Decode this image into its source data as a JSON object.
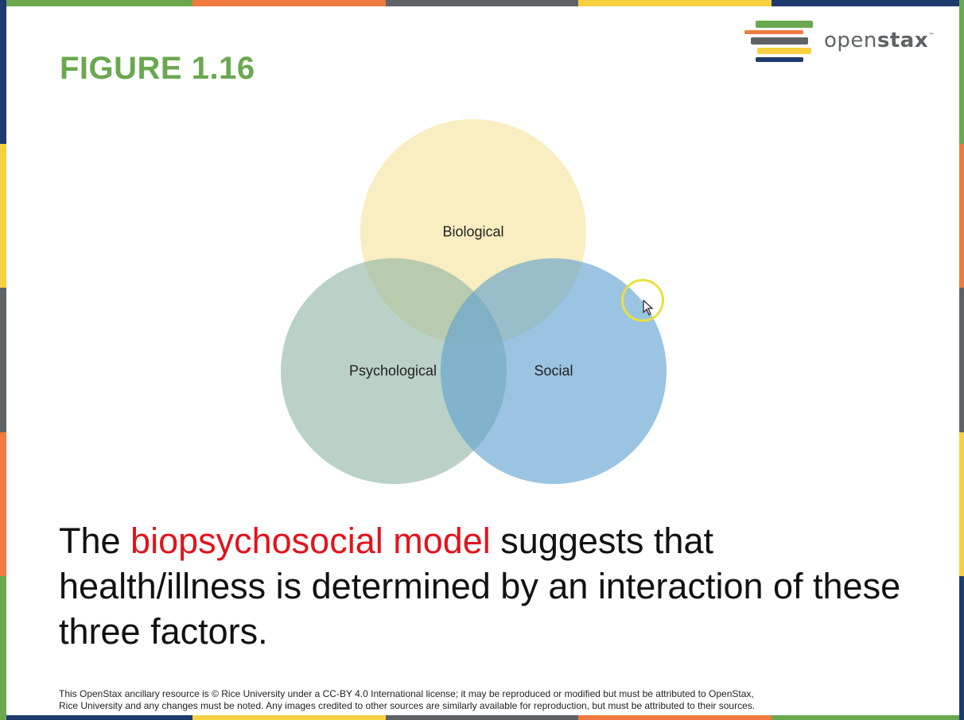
{
  "slide": {
    "figure_title": "FIGURE 1.16",
    "title_color": "#6aa84f",
    "logo": {
      "text_regular": "open",
      "text_bold": "stax",
      "trademark": "™",
      "icon": "openstax-books-icon"
    },
    "venn": {
      "circles": [
        {
          "label": "Biological",
          "color": "#f6e7a6"
        },
        {
          "label": "Psychological",
          "color": "#8fb4a4"
        },
        {
          "label": "Social",
          "color": "#5d9fd1"
        }
      ]
    },
    "caption": {
      "before": "The ",
      "highlight": "biopsychosocial model",
      "after": " suggests that health/illness is determined by an interaction of these three factors.",
      "highlight_color": "#e2141c"
    },
    "license": {
      "line1": "This OpenStax ancillary resource is © Rice University under a CC-BY 4.0 International  license; it may be reproduced or modified but must be attributed to OpenStax,",
      "line2": "Rice University and any changes must be noted. Any images credited to other sources are similarly available for reproduction, but must be attributed to their sources."
    },
    "border_colors": [
      "#6aa84f",
      "#f07a3f",
      "#5f6366",
      "#f7d040",
      "#1f3a6e"
    ]
  }
}
